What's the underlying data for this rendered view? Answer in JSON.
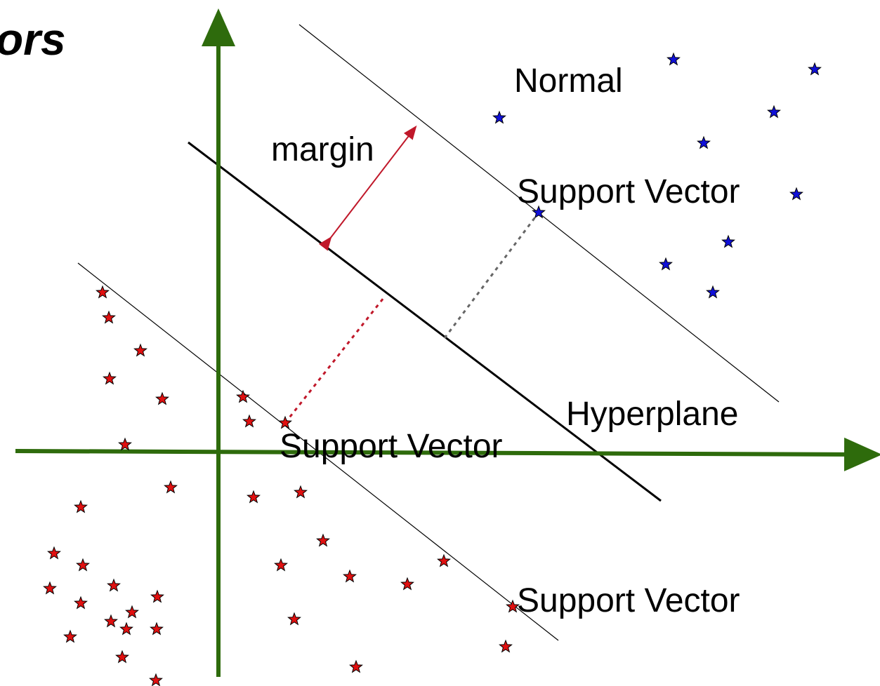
{
  "title": "ors",
  "labels": [
    "Normal",
    "margin",
    "Support Vector",
    "Support Vector",
    "Hyperplane",
    "Support Vector"
  ]
}
